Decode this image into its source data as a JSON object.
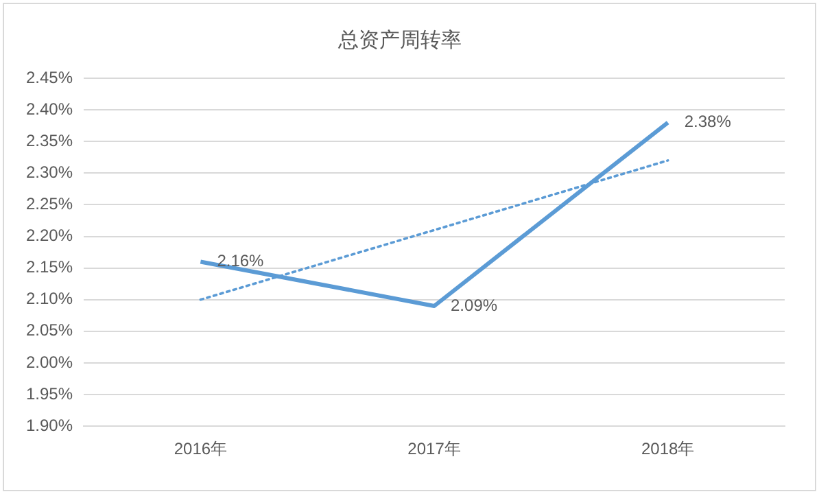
{
  "chart_data": {
    "type": "line",
    "title": "总资产周转率",
    "categories": [
      "2016年",
      "2017年",
      "2018年"
    ],
    "series": [
      {
        "name": null,
        "color": "#5b9bd5",
        "values": [
          2.16,
          2.09,
          2.38
        ],
        "value_labels": [
          "2.16%",
          "2.09%",
          "2.38%"
        ],
        "line_style": "solid"
      },
      {
        "type": "line",
        "color": "#5b9bd5",
        "values": [
          2.1,
          2.21,
          2.32
        ],
        "line_style": "dotted"
      }
    ],
    "ylim": [
      1.9,
      2.45
    ],
    "yticks": [
      {
        "value": 1.9,
        "label": "1.90%"
      },
      {
        "value": 1.95,
        "label": "1.95%"
      },
      {
        "value": 2.0,
        "label": "2.00%"
      },
      {
        "value": 2.05,
        "label": "2.05%"
      },
      {
        "value": 2.1,
        "label": "2.10%"
      },
      {
        "value": 2.15,
        "label": "2.15%"
      },
      {
        "value": 2.2,
        "label": "2.20%"
      },
      {
        "value": 2.25,
        "label": "2.25%"
      },
      {
        "value": 2.3,
        "label": "2.30%"
      },
      {
        "value": 2.35,
        "label": "2.35%"
      },
      {
        "value": 2.4,
        "label": "2.40%"
      },
      {
        "value": 2.45,
        "label": "2.45%"
      }
    ],
    "grid": "y",
    "legend": false,
    "marker": "none"
  }
}
